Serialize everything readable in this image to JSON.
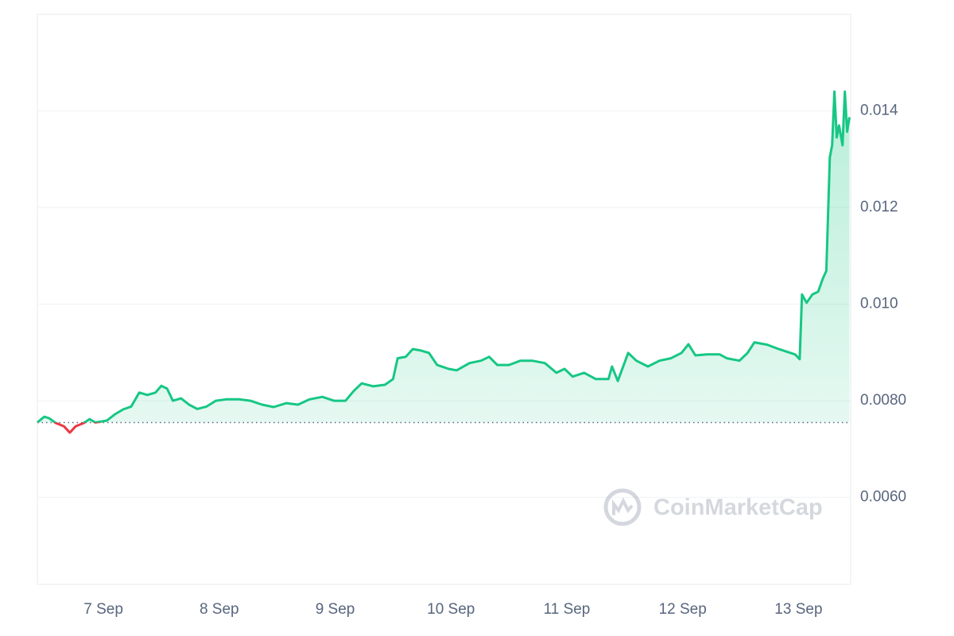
{
  "chart_data": {
    "type": "line",
    "watermark": "CoinMarketCap",
    "x": [
      -0.57,
      -0.51,
      -0.47,
      -0.41,
      -0.34,
      -0.29,
      -0.24,
      -0.17,
      -0.12,
      -0.07,
      0.03,
      0.1,
      0.17,
      0.24,
      0.31,
      0.38,
      0.45,
      0.5,
      0.55,
      0.6,
      0.67,
      0.74,
      0.81,
      0.89,
      0.97,
      1.06,
      1.17,
      1.27,
      1.37,
      1.47,
      1.58,
      1.68,
      1.78,
      1.89,
      1.99,
      2.09,
      2.16,
      2.23,
      2.33,
      2.43,
      2.5,
      2.54,
      2.61,
      2.67,
      2.74,
      2.81,
      2.88,
      2.98,
      3.05,
      3.16,
      3.26,
      3.33,
      3.4,
      3.5,
      3.6,
      3.7,
      3.81,
      3.91,
      3.98,
      4.05,
      4.15,
      4.25,
      4.36,
      4.39,
      4.44,
      4.53,
      4.6,
      4.7,
      4.8,
      4.9,
      4.99,
      5.05,
      5.11,
      5.21,
      5.32,
      5.38,
      5.49,
      5.56,
      5.62,
      5.73,
      5.83,
      5.97,
      6.01,
      6.03,
      6.07,
      6.12,
      6.17,
      6.21,
      6.24,
      6.27,
      6.29,
      6.31,
      6.33,
      6.35,
      6.38,
      6.4,
      6.42,
      6.44
    ],
    "series": [
      {
        "color": "#16c784",
        "below_color": "#ea3943",
        "values": [
          0.00755,
          0.00767,
          0.00764,
          0.00754,
          0.00747,
          0.00734,
          0.00747,
          0.00754,
          0.00762,
          0.00755,
          0.00759,
          0.00772,
          0.00782,
          0.00788,
          0.00817,
          0.00812,
          0.00817,
          0.00831,
          0.00825,
          0.008,
          0.00805,
          0.00792,
          0.00783,
          0.00788,
          0.008,
          0.00803,
          0.00803,
          0.008,
          0.00792,
          0.00787,
          0.00795,
          0.00792,
          0.00803,
          0.00808,
          0.008,
          0.008,
          0.0082,
          0.00836,
          0.0083,
          0.00833,
          0.00845,
          0.00888,
          0.00891,
          0.00907,
          0.00904,
          0.00899,
          0.00874,
          0.00866,
          0.00863,
          0.00878,
          0.00883,
          0.00891,
          0.00874,
          0.00874,
          0.00883,
          0.00883,
          0.00878,
          0.00858,
          0.00866,
          0.0085,
          0.00858,
          0.00845,
          0.00845,
          0.00871,
          0.00841,
          0.00899,
          0.00883,
          0.00871,
          0.00883,
          0.00888,
          0.00899,
          0.00917,
          0.00894,
          0.00896,
          0.00896,
          0.00888,
          0.00883,
          0.00899,
          0.00921,
          0.00916,
          0.00907,
          0.00896,
          0.00886,
          0.0102,
          0.01003,
          0.0102,
          0.01026,
          0.01053,
          0.01069,
          0.01304,
          0.01329,
          0.0144,
          0.01345,
          0.0137,
          0.01329,
          0.0144,
          0.01357,
          0.01387
        ]
      }
    ],
    "baseline": 0.00755,
    "xlim": [
      -0.57,
      6.45
    ],
    "xticks": [
      {
        "value": 0,
        "label": "7 Sep"
      },
      {
        "value": 1,
        "label": "8 Sep"
      },
      {
        "value": 2,
        "label": "9 Sep"
      },
      {
        "value": 3,
        "label": "10 Sep"
      },
      {
        "value": 4,
        "label": "11 Sep"
      },
      {
        "value": 5,
        "label": "12 Sep"
      },
      {
        "value": 6,
        "label": "13 Sep"
      }
    ],
    "ylim": [
      0.0042,
      0.016
    ],
    "yticks": [
      0.014,
      0.012,
      {
        "value": 0.01,
        "label": "0.010"
      },
      {
        "value": 0.008,
        "label": "0.0080"
      },
      {
        "value": 0.006,
        "label": "0.0060"
      }
    ],
    "grid": true
  }
}
